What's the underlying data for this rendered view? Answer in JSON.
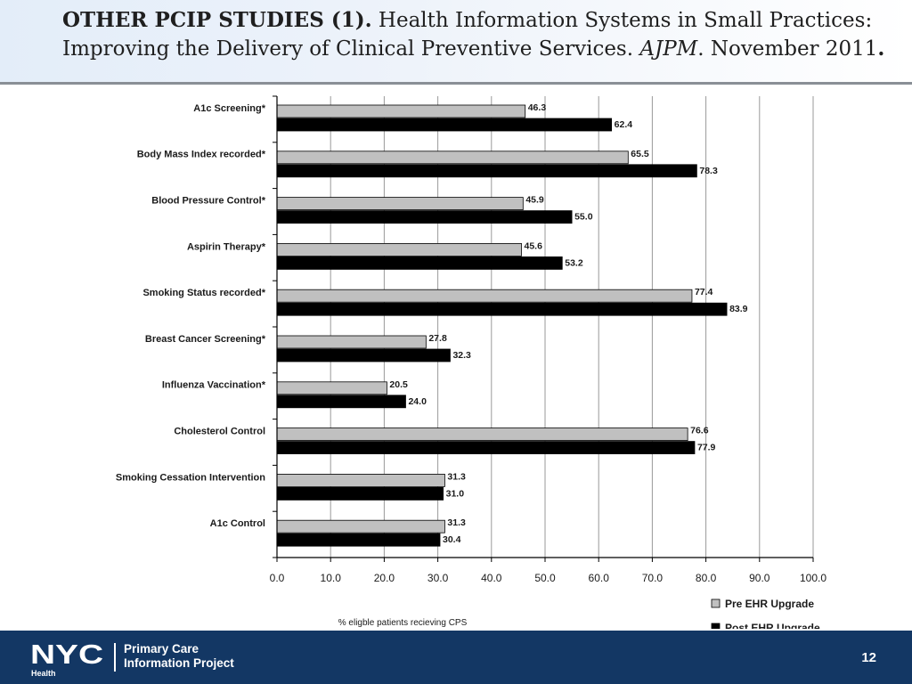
{
  "slide": {
    "title_bold": "OTHER PCIP STUDIES (1).",
    "title_rest": " Health Information Systems in Small Practices: Improving the Delivery of Clinical Preventive Services. ",
    "title_italic": "AJPM",
    "title_end": ". November 2011",
    "title_period": "."
  },
  "footer": {
    "logo_text": "NYC",
    "logo_sub": "Health",
    "program_line1": "Primary Care",
    "program_line2": "Information Project",
    "page_number": "12",
    "background_color": "#133764"
  },
  "chart_data": {
    "type": "bar",
    "orientation": "horizontal",
    "categories": [
      "A1c Screening*",
      "Body Mass Index recorded*",
      "Blood Pressure Control*",
      "Aspirin Therapy*",
      "Smoking Status recorded*",
      "Breast Cancer Screening*",
      "Influenza Vaccination*",
      "Cholesterol Control",
      "Smoking Cessation Intervention",
      "A1c Control"
    ],
    "series": [
      {
        "name": "Pre EHR Upgrade",
        "color": "#c0c0c0",
        "values": [
          46.3,
          65.5,
          45.9,
          45.6,
          77.4,
          27.8,
          20.5,
          76.6,
          31.3,
          31.3
        ],
        "labels": [
          "46.3",
          "65.5",
          "45.9",
          "45.6",
          "77.4",
          "27.8",
          "20.5",
          "76.6",
          "31.3",
          "31.3"
        ]
      },
      {
        "name": "Post EHR Upgrade",
        "color": "#000000",
        "values": [
          62.4,
          78.3,
          55.0,
          53.2,
          83.9,
          32.3,
          24.0,
          77.9,
          31.0,
          30.4
        ],
        "labels": [
          "62.4",
          "78.3",
          "55.0",
          "53.2",
          "83.9",
          "32.3",
          "24.0",
          "77.9",
          "31.0",
          "30.4"
        ]
      }
    ],
    "xlabel": "% eligble patients recieving CPS",
    "xlim": [
      0,
      100
    ],
    "xticks": [
      "0.0",
      "10.0",
      "20.0",
      "30.0",
      "40.0",
      "50.0",
      "60.0",
      "70.0",
      "80.0",
      "90.0",
      "100.0"
    ],
    "grid": true,
    "legend_position": "bottom-right"
  }
}
